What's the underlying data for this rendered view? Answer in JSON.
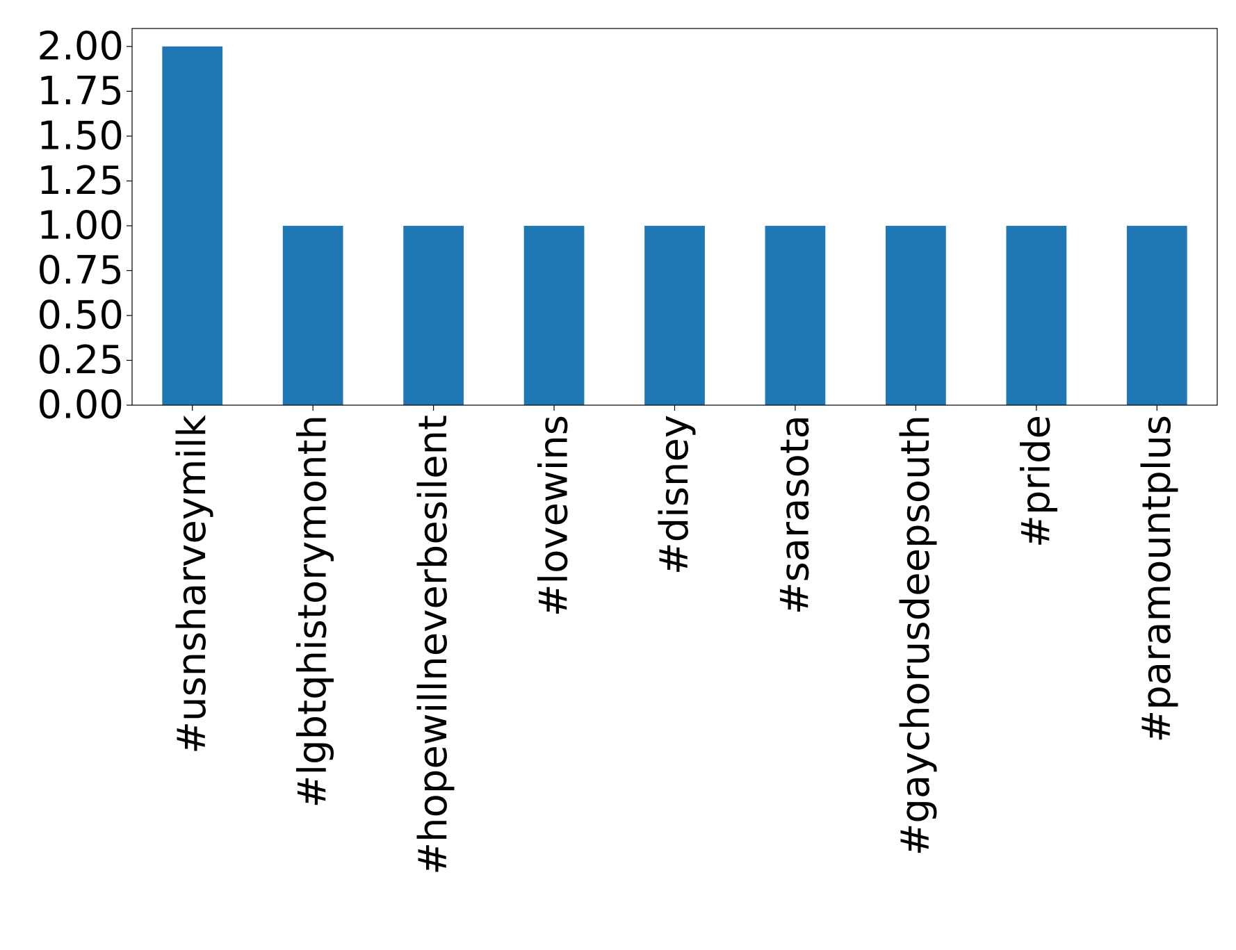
{
  "chart_data": {
    "type": "bar",
    "categories": [
      "#usnsharveymilk",
      "#lgbtqhistorymonth",
      "#hopewillneverbesilent",
      "#lovewins",
      "#disney",
      "#sarasota",
      "#gaychorusdeepsouth",
      "#pride",
      "#paramountplus"
    ],
    "values": [
      2,
      1,
      1,
      1,
      1,
      1,
      1,
      1,
      1
    ],
    "title": "",
    "xlabel": "",
    "ylabel": "",
    "ylim": [
      0,
      2.1
    ],
    "yticks": [
      0.0,
      0.25,
      0.5,
      0.75,
      1.0,
      1.25,
      1.5,
      1.75,
      2.0
    ],
    "ytick_labels": [
      "0.00",
      "0.25",
      "0.50",
      "0.75",
      "1.00",
      "1.25",
      "1.50",
      "1.75",
      "2.00"
    ],
    "grid": false,
    "legend": "none",
    "bar_color": "#1f77b4",
    "x_label_rotation": "vertical"
  }
}
